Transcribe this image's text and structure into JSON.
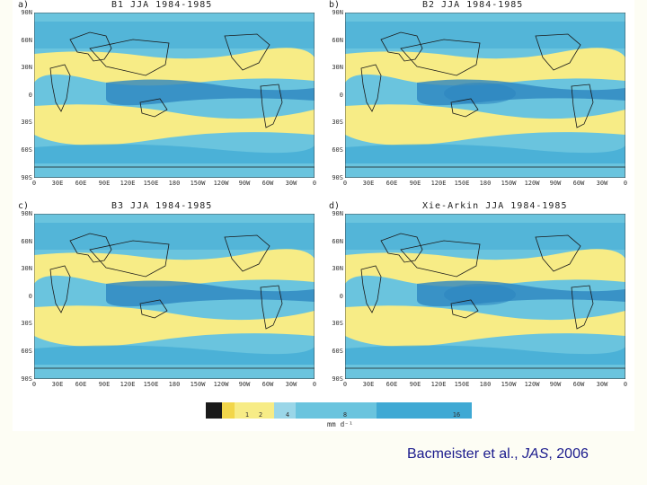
{
  "colors": {
    "dry": "#f7ec86",
    "wet_light": "#6ac4de",
    "wet_mid": "#3fa9d4",
    "wet_dark": "#2d86bf",
    "land_line": "#1a1a1a",
    "citation": "#1a1a8c"
  },
  "panels": [
    {
      "letter": "a)",
      "title": "B1 JJA 1984-1985"
    },
    {
      "letter": "b)",
      "title": "B2 JJA 1984-1985"
    },
    {
      "letter": "c)",
      "title": "B3 JJA 1984-1985"
    },
    {
      "letter": "d)",
      "title": "Xie-Arkin JJA 1984-1985"
    }
  ],
  "lat_labels": [
    "90N",
    "60N",
    "30N",
    "0",
    "30S",
    "60S",
    "90S"
  ],
  "lon_labels": [
    "0",
    "30E",
    "60E",
    "90E",
    "120E",
    "150E",
    "180",
    "150W",
    "120W",
    "90W",
    "60W",
    "30W",
    "0"
  ],
  "colorbar": {
    "ticks": [
      "1",
      "2",
      "4",
      "8",
      "16"
    ],
    "units": "mm d⁻¹"
  },
  "citation": {
    "authors": "Bacmeister et al., ",
    "journal": "JAS",
    "year": ", 2006"
  }
}
